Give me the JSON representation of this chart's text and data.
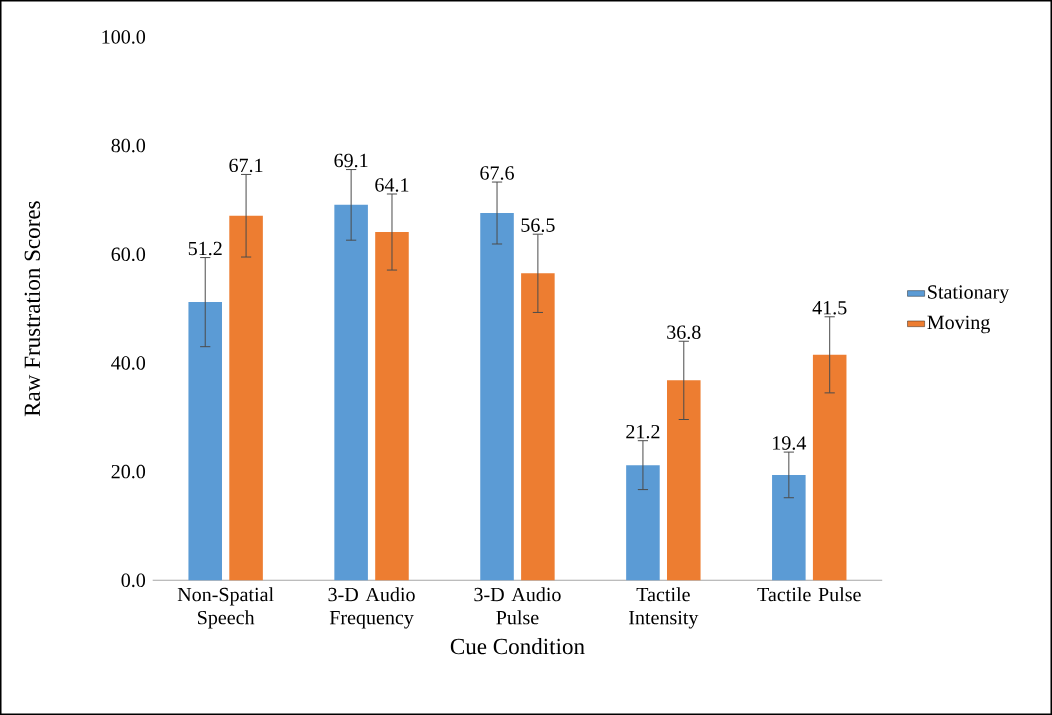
{
  "chart_data": {
    "type": "bar",
    "xlabel": "Cue Condition",
    "ylabel": "Raw Frustration Scores",
    "categories": [
      "Non-Spatial Speech",
      "3-D Audio Frequency",
      "3-D Audio Pulse",
      "Tactile Intensity",
      "Tactile Pulse"
    ],
    "series": [
      {
        "name": "Stationary",
        "color": "#5b9bd5",
        "values": [
          51.2,
          69.1,
          67.6,
          21.2,
          19.4
        ],
        "errors": [
          8.2,
          6.5,
          5.7,
          4.5,
          4.2
        ]
      },
      {
        "name": "Moving",
        "color": "#ed7d31",
        "values": [
          67.1,
          64.1,
          56.5,
          36.8,
          41.5
        ],
        "errors": [
          7.6,
          7.0,
          7.2,
          7.2,
          7.0
        ]
      }
    ],
    "ylim": [
      0,
      100
    ],
    "yticks": [
      {
        "value": 0,
        "label": "0.0"
      },
      {
        "value": 20,
        "label": "20.0"
      },
      {
        "value": 40,
        "label": "40.0"
      },
      {
        "value": 60,
        "label": "60.0"
      },
      {
        "value": 80,
        "label": "80.0"
      },
      {
        "value": 100,
        "label": "100.0"
      }
    ],
    "data_labels": true,
    "grid": false,
    "legend": "right"
  }
}
